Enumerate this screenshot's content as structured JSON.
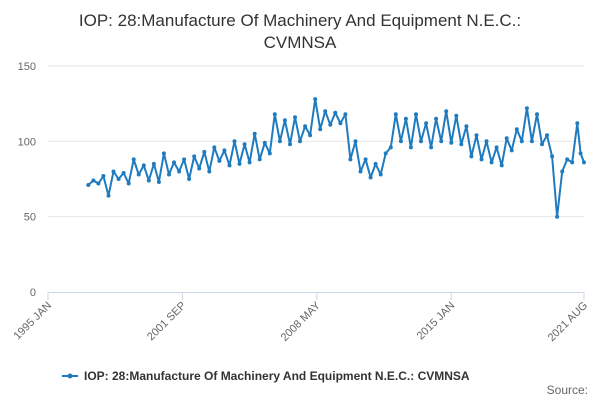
{
  "chart_data": {
    "type": "line",
    "title_line1": "IOP: 28:Manufacture Of Machinery And Equipment N.E.C.:",
    "title_line2": "CVMNSA",
    "xlabel": "",
    "ylabel": "",
    "x_range": [
      "1995-01",
      "2021-08"
    ],
    "x_ticks": [
      "1995 JAN",
      "2001 SEP",
      "2008 MAY",
      "2015 JAN",
      "2021 AUG"
    ],
    "ylim": [
      0,
      150
    ],
    "y_ticks": [
      "0",
      "50",
      "100",
      "150"
    ],
    "grid": true,
    "legend_position": "bottom",
    "source_label": "Source:",
    "color": "#1f7bbf",
    "series": [
      {
        "name": "IOP: 28:Manufacture Of Machinery And Equipment N.E.C.: CVMNSA",
        "points": [
          [
            "1997-01",
            71
          ],
          [
            "1997-04",
            74
          ],
          [
            "1997-07",
            72
          ],
          [
            "1997-10",
            77
          ],
          [
            "1998-01",
            64
          ],
          [
            "1998-04",
            80
          ],
          [
            "1998-07",
            75
          ],
          [
            "1998-10",
            79
          ],
          [
            "1999-01",
            72
          ],
          [
            "1999-04",
            88
          ],
          [
            "1999-07",
            78
          ],
          [
            "1999-10",
            84
          ],
          [
            "2000-01",
            74
          ],
          [
            "2000-04",
            85
          ],
          [
            "2000-07",
            73
          ],
          [
            "2000-10",
            92
          ],
          [
            "2001-01",
            78
          ],
          [
            "2001-04",
            86
          ],
          [
            "2001-07",
            80
          ],
          [
            "2001-10",
            88
          ],
          [
            "2002-01",
            75
          ],
          [
            "2002-04",
            90
          ],
          [
            "2002-07",
            82
          ],
          [
            "2002-10",
            93
          ],
          [
            "2003-01",
            80
          ],
          [
            "2003-04",
            96
          ],
          [
            "2003-07",
            87
          ],
          [
            "2003-10",
            94
          ],
          [
            "2004-01",
            84
          ],
          [
            "2004-04",
            100
          ],
          [
            "2004-07",
            85
          ],
          [
            "2004-10",
            98
          ],
          [
            "2005-01",
            86
          ],
          [
            "2005-04",
            105
          ],
          [
            "2005-07",
            88
          ],
          [
            "2005-10",
            99
          ],
          [
            "2006-01",
            92
          ],
          [
            "2006-04",
            118
          ],
          [
            "2006-07",
            100
          ],
          [
            "2006-10",
            114
          ],
          [
            "2007-01",
            98
          ],
          [
            "2007-04",
            116
          ],
          [
            "2007-07",
            100
          ],
          [
            "2007-10",
            110
          ],
          [
            "2008-01",
            104
          ],
          [
            "2008-04",
            128
          ],
          [
            "2008-07",
            108
          ],
          [
            "2008-10",
            120
          ],
          [
            "2009-01",
            111
          ],
          [
            "2009-04",
            119
          ],
          [
            "2009-07",
            112
          ],
          [
            "2009-10",
            118
          ],
          [
            "2010-01",
            88
          ],
          [
            "2010-04",
            100
          ],
          [
            "2010-07",
            80
          ],
          [
            "2010-10",
            88
          ],
          [
            "2011-01",
            76
          ],
          [
            "2011-04",
            85
          ],
          [
            "2011-07",
            78
          ],
          [
            "2011-10",
            92
          ],
          [
            "2012-01",
            96
          ],
          [
            "2012-04",
            118
          ],
          [
            "2012-07",
            100
          ],
          [
            "2012-10",
            115
          ],
          [
            "2013-01",
            96
          ],
          [
            "2013-04",
            118
          ],
          [
            "2013-07",
            100
          ],
          [
            "2013-10",
            112
          ],
          [
            "2014-01",
            96
          ],
          [
            "2014-04",
            115
          ],
          [
            "2014-07",
            100
          ],
          [
            "2014-10",
            120
          ],
          [
            "2015-01",
            99
          ],
          [
            "2015-04",
            117
          ],
          [
            "2015-07",
            98
          ],
          [
            "2015-10",
            110
          ],
          [
            "2016-01",
            90
          ],
          [
            "2016-04",
            104
          ],
          [
            "2016-07",
            88
          ],
          [
            "2016-10",
            100
          ],
          [
            "2017-01",
            86
          ],
          [
            "2017-04",
            96
          ],
          [
            "2017-07",
            84
          ],
          [
            "2017-10",
            102
          ],
          [
            "2018-01",
            94
          ],
          [
            "2018-04",
            108
          ],
          [
            "2018-07",
            100
          ],
          [
            "2018-10",
            122
          ],
          [
            "2019-01",
            100
          ],
          [
            "2019-04",
            118
          ],
          [
            "2019-07",
            98
          ],
          [
            "2019-10",
            104
          ],
          [
            "2020-01",
            90
          ],
          [
            "2020-04",
            50
          ],
          [
            "2020-07",
            80
          ],
          [
            "2020-10",
            88
          ],
          [
            "2021-01",
            86
          ],
          [
            "2021-04",
            112
          ],
          [
            "2021-06",
            92
          ],
          [
            "2021-08",
            86
          ]
        ]
      }
    ]
  }
}
